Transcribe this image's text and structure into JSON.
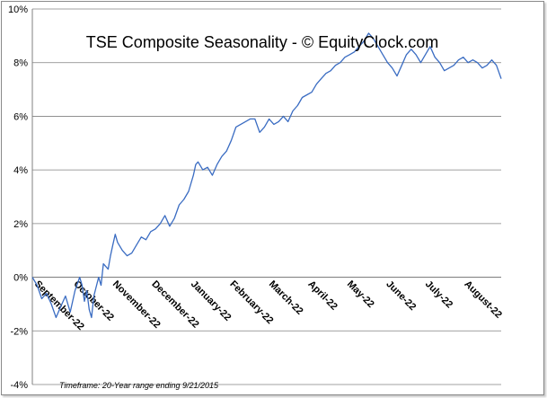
{
  "chart_data": {
    "type": "line",
    "title": "TSE Composite Seasonality - © EquityClock.com",
    "footnote": "Timeframe: 20-Year range ending 9/21/2015",
    "ylim": [
      -4,
      10
    ],
    "y_ticks": [
      "-4%",
      "-2%",
      "0%",
      "2%",
      "4%",
      "6%",
      "8%",
      "10%"
    ],
    "x_tick_labels": [
      "September-22",
      "October-22",
      "November-22",
      "December-22",
      "January-22",
      "February-22",
      "March-22",
      "April-22",
      "May-22",
      "June-22",
      "July-22",
      "August-22"
    ],
    "grid": true,
    "line_color": "#3a6cc2",
    "series": [
      {
        "values": [
          [
            0,
            0.0
          ],
          [
            2,
            -0.3
          ],
          [
            4,
            -0.8
          ],
          [
            6,
            -0.6
          ],
          [
            8,
            -1.0
          ],
          [
            10,
            -1.5
          ],
          [
            12,
            -1.1
          ],
          [
            14,
            -0.7
          ],
          [
            16,
            -1.3
          ],
          [
            18,
            -0.5
          ],
          [
            20,
            0.0
          ],
          [
            21,
            -0.3
          ],
          [
            22,
            -0.9
          ],
          [
            23,
            -0.5
          ],
          [
            24,
            -1.2
          ],
          [
            25,
            -1.5
          ],
          [
            26,
            -0.7
          ],
          [
            28,
            0.0
          ],
          [
            29,
            -0.3
          ],
          [
            30,
            0.5
          ],
          [
            32,
            0.3
          ],
          [
            33,
            0.8
          ],
          [
            34,
            1.2
          ],
          [
            35,
            1.6
          ],
          [
            36,
            1.3
          ],
          [
            38,
            1.0
          ],
          [
            40,
            0.8
          ],
          [
            42,
            0.9
          ],
          [
            44,
            1.2
          ],
          [
            46,
            1.5
          ],
          [
            48,
            1.4
          ],
          [
            50,
            1.7
          ],
          [
            52,
            1.8
          ],
          [
            54,
            2.0
          ],
          [
            56,
            2.3
          ],
          [
            58,
            1.9
          ],
          [
            60,
            2.2
          ],
          [
            62,
            2.7
          ],
          [
            64,
            2.9
          ],
          [
            66,
            3.2
          ],
          [
            68,
            3.8
          ],
          [
            69,
            4.2
          ],
          [
            70,
            4.3
          ],
          [
            72,
            4.0
          ],
          [
            74,
            4.1
          ],
          [
            76,
            3.8
          ],
          [
            78,
            4.2
          ],
          [
            80,
            4.5
          ],
          [
            82,
            4.7
          ],
          [
            84,
            5.1
          ],
          [
            86,
            5.6
          ],
          [
            88,
            5.7
          ],
          [
            90,
            5.8
          ],
          [
            92,
            5.9
          ],
          [
            94,
            5.9
          ],
          [
            96,
            5.4
          ],
          [
            98,
            5.6
          ],
          [
            100,
            5.9
          ],
          [
            102,
            5.7
          ],
          [
            104,
            5.8
          ],
          [
            106,
            6.0
          ],
          [
            108,
            5.8
          ],
          [
            110,
            6.2
          ],
          [
            112,
            6.4
          ],
          [
            114,
            6.7
          ],
          [
            116,
            6.8
          ],
          [
            118,
            6.9
          ],
          [
            120,
            7.2
          ],
          [
            122,
            7.4
          ],
          [
            124,
            7.6
          ],
          [
            126,
            7.7
          ],
          [
            128,
            7.9
          ],
          [
            130,
            8.0
          ],
          [
            132,
            8.2
          ],
          [
            134,
            8.3
          ],
          [
            136,
            8.4
          ],
          [
            138,
            8.6
          ],
          [
            140,
            8.8
          ],
          [
            142,
            9.1
          ],
          [
            144,
            8.9
          ],
          [
            146,
            8.6
          ],
          [
            148,
            8.3
          ],
          [
            150,
            8.0
          ],
          [
            152,
            7.8
          ],
          [
            154,
            7.5
          ],
          [
            156,
            7.9
          ],
          [
            158,
            8.3
          ],
          [
            160,
            8.5
          ],
          [
            162,
            8.3
          ],
          [
            164,
            8.0
          ],
          [
            166,
            8.3
          ],
          [
            168,
            8.6
          ],
          [
            170,
            8.2
          ],
          [
            172,
            8.0
          ],
          [
            174,
            7.7
          ],
          [
            176,
            7.8
          ],
          [
            178,
            7.9
          ],
          [
            180,
            8.1
          ],
          [
            182,
            8.2
          ],
          [
            184,
            8.0
          ],
          [
            186,
            8.1
          ],
          [
            188,
            8.0
          ],
          [
            190,
            7.8
          ],
          [
            192,
            7.9
          ],
          [
            194,
            8.1
          ],
          [
            196,
            7.9
          ],
          [
            198,
            7.4
          ]
        ]
      }
    ]
  }
}
